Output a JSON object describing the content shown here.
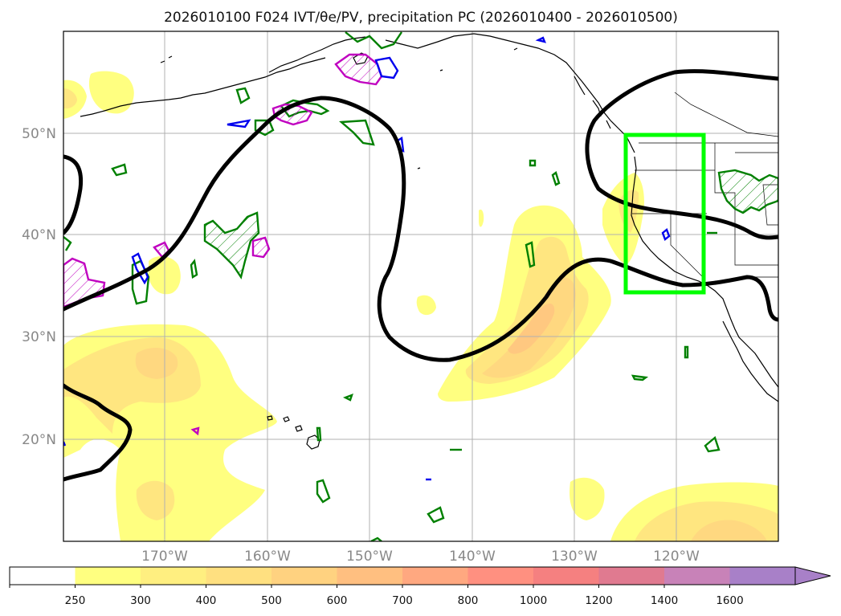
{
  "title": "2026010100 F024 IVT/θe/PV, precipitation PC (2026010400 - 2026010500)",
  "lon_labels": [
    "170°W",
    "160°W",
    "150°W",
    "140°W",
    "130°W",
    "120°W"
  ],
  "lat_labels": [
    "50°N",
    "40°N",
    "30°N",
    "20°N"
  ],
  "colorbar": {
    "levels": [
      "250",
      "300",
      "400",
      "500",
      "600",
      "700",
      "800",
      "1000",
      "1200",
      "1400",
      "1600"
    ],
    "colors": [
      "#ffffff",
      "#ffff80",
      "#ffef80",
      "#ffe080",
      "#ffd280",
      "#ffbf80",
      "#ffa880",
      "#ff9080",
      "#f58080",
      "#e07a90",
      "#c882b8",
      "#a880c8"
    ],
    "extend": "max"
  },
  "colors": {
    "ivt_fill": "#ffff80",
    "theta_e_contour": "#000000",
    "pv_contour_green": "#008000",
    "pv_contour_magenta": "#c000c0",
    "pv_contour_blue": "#0000ee",
    "highlight_box": "#00ff00",
    "grid": "#b0b0b0"
  },
  "highlight_box": {
    "lon": [
      -125,
      -117
    ],
    "lat": [
      34.5,
      50
    ]
  }
}
